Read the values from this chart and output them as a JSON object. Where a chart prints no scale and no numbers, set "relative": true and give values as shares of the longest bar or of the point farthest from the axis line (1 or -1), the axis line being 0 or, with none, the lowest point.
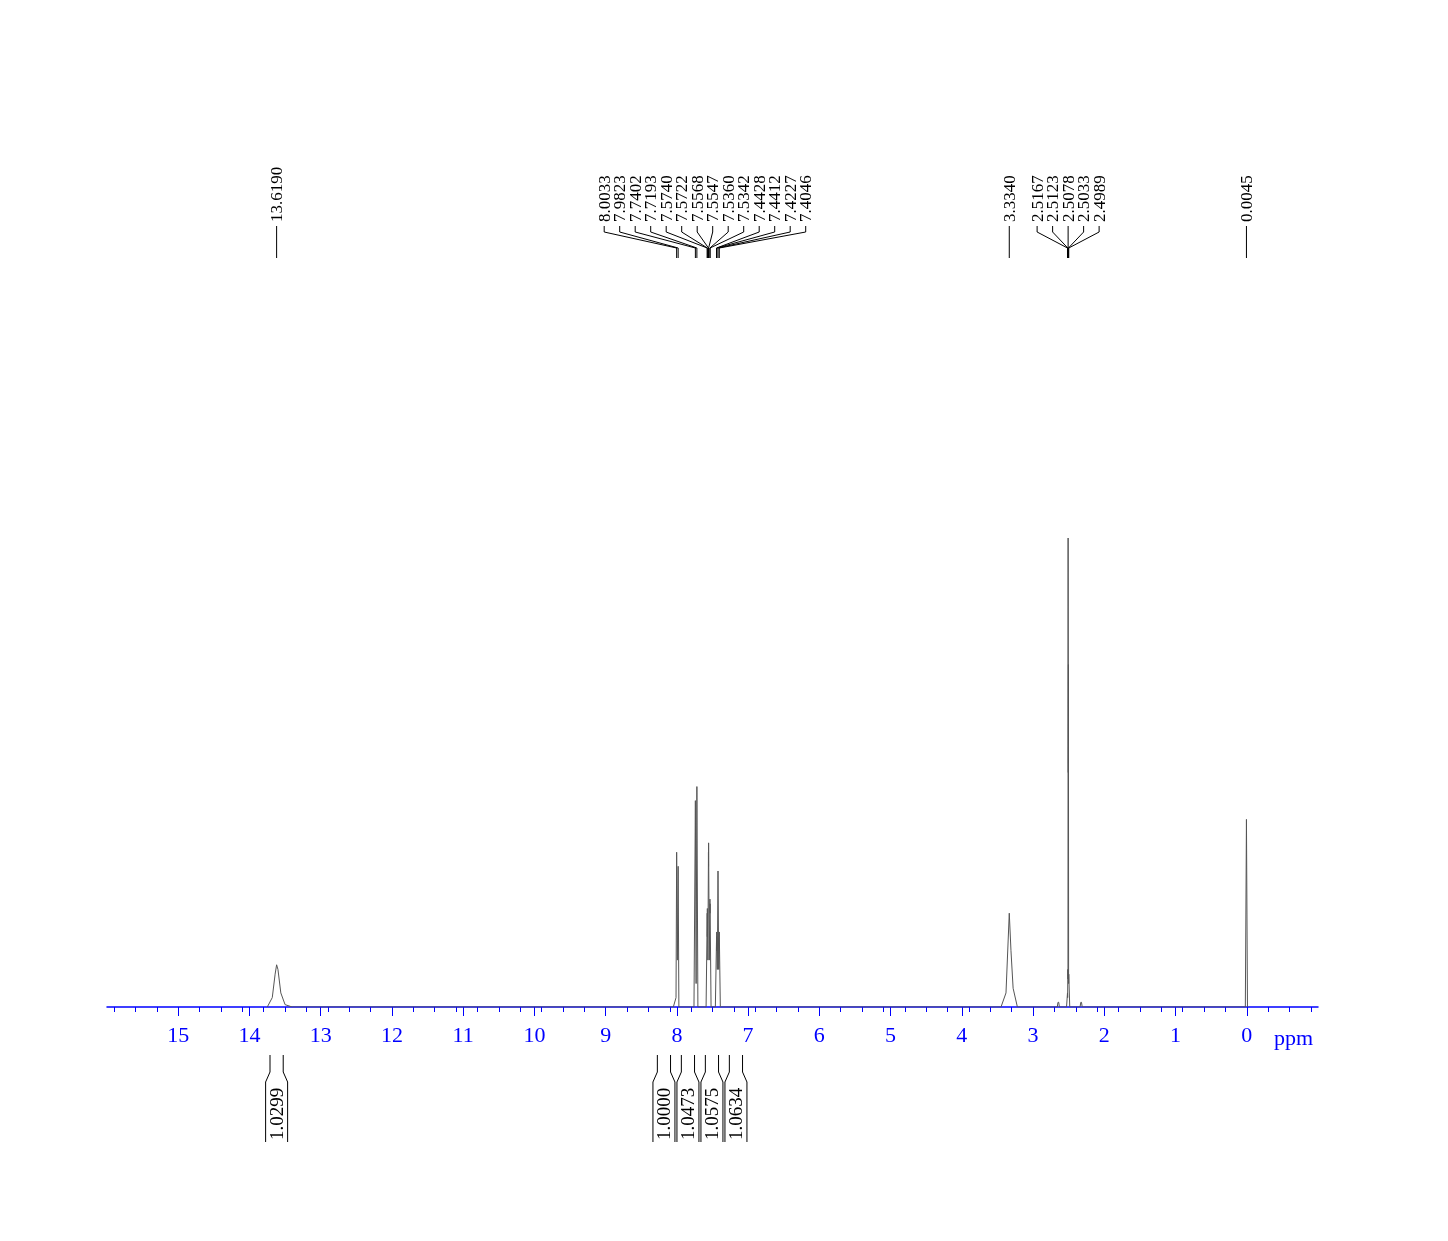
{
  "chart_data": {
    "type": "line",
    "relative": true,
    "xlabel": "ppm",
    "xlim": [
      16,
      -1
    ],
    "xticks": [
      15,
      14,
      13,
      12,
      11,
      10,
      9,
      8,
      7,
      6,
      5,
      4,
      3,
      2,
      1,
      0
    ],
    "marker": "none",
    "line_style": "solid",
    "series": [
      {
        "color": "#555555",
        "x": [
          13.75,
          13.68,
          13.64,
          13.619,
          13.6,
          13.56,
          13.5,
          13.4,
          8.05,
          8.012,
          8.0033,
          7.993,
          7.9823,
          7.972,
          7.76,
          7.7402,
          7.73,
          7.7193,
          7.705,
          7.59,
          7.574,
          7.573,
          7.5722,
          7.565,
          7.5568,
          7.5557,
          7.5547,
          7.545,
          7.536,
          7.5351,
          7.5342,
          7.52,
          7.46,
          7.4428,
          7.442,
          7.4412,
          7.432,
          7.4227,
          7.413,
          7.4046,
          7.39,
          3.45,
          3.38,
          3.334,
          3.31,
          3.28,
          3.22,
          2.66,
          2.65,
          2.64,
          2.63,
          2.53,
          2.5167,
          2.5145,
          2.5123,
          2.51,
          2.5078,
          2.5055,
          2.5033,
          2.5011,
          2.4989,
          2.485,
          2.34,
          2.33,
          2.32,
          2.31,
          0.02,
          0.0045,
          -0.01
        ],
        "values": [
          0,
          0.02,
          0.07,
          0.09,
          0.08,
          0.03,
          0.005,
          0,
          0,
          0.02,
          0.33,
          0.1,
          0.3,
          0,
          0,
          0.44,
          0.05,
          0.47,
          0,
          0,
          0.2,
          0.15,
          0.21,
          0.1,
          0.33,
          0.3,
          0.35,
          0.1,
          0.23,
          0.2,
          0.22,
          0,
          0,
          0.15,
          0.12,
          0.16,
          0.08,
          0.29,
          0.08,
          0.16,
          0,
          0,
          0.03,
          0.2,
          0.12,
          0.04,
          0,
          0,
          0.01,
          0.01,
          0,
          0,
          0.03,
          0.02,
          0.08,
          0.06,
          1,
          0.5,
          0.73,
          0.05,
          0.07,
          0,
          0,
          0.01,
          0.01,
          0,
          0,
          0.4,
          0
        ]
      }
    ],
    "annotations": [
      "13.6190",
      "8.0033",
      "7.9823",
      "7.7402",
      "7.7193",
      "7.5740",
      "7.5722",
      "7.5568",
      "7.5547",
      "7.5360",
      "7.5342",
      "7.4428",
      "7.4412",
      "7.4227",
      "7.4046",
      "3.3340",
      "2.5167",
      "2.5123",
      "2.5078",
      "2.5033",
      "2.4989",
      "0.0045",
      "1.0299",
      "1.0000",
      "1.0473",
      "1.0575",
      "1.0634"
    ]
  }
}
